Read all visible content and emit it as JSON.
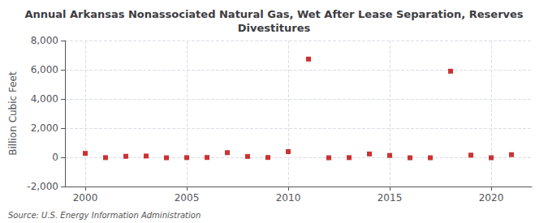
{
  "chart_data": {
    "type": "scatter",
    "title": "Annual Arkansas Nonassociated Natural Gas, Wet After Lease Separation, Reserves\nDivestitures",
    "ylabel": "Billion Cubic Feet",
    "annotation": "Source: U.S. Energy Information Administration",
    "x": [
      2000,
      2001,
      2002,
      2003,
      2004,
      2005,
      2006,
      2007,
      2008,
      2009,
      2010,
      2011,
      2012,
      2013,
      2014,
      2015,
      2016,
      2017,
      2018,
      2019,
      2020,
      2021
    ],
    "values": [
      270,
      -20,
      70,
      90,
      -30,
      -20,
      -10,
      320,
      60,
      -10,
      390,
      6730,
      -30,
      -20,
      230,
      130,
      -30,
      -30,
      5900,
      150,
      -30,
      180
    ],
    "color": "#c00000",
    "marker": "square",
    "xlim": [
      1999,
      2022
    ],
    "xticks": [
      2000,
      2005,
      2010,
      2015,
      2020
    ],
    "ylim": [
      -2000,
      8000
    ],
    "yticks": [
      {
        "value": -2000,
        "label": "-2,000"
      },
      0,
      {
        "value": 2000,
        "label": "2,000"
      },
      {
        "value": 4000,
        "label": "4,000"
      },
      {
        "value": 6000,
        "label": "6,000"
      },
      {
        "value": 8000,
        "label": "8,000"
      }
    ],
    "grid": true
  }
}
